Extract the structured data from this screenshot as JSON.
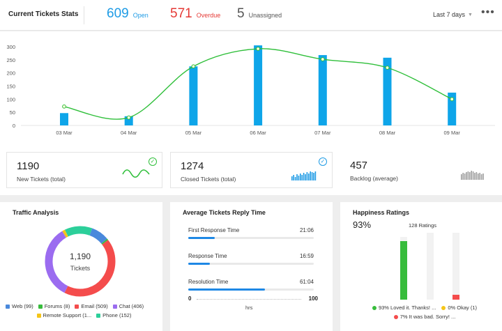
{
  "header": {
    "title": "Current Tickets Stats",
    "open": {
      "value": "609",
      "label": "Open",
      "color": "#1e9be5"
    },
    "overdue": {
      "value": "571",
      "label": "Overdue",
      "color": "#e53935"
    },
    "unassigned": {
      "value": "5",
      "label": "Unassigned",
      "color": "#555555"
    },
    "range_label": "Last 7 days",
    "more_icon": "more-horizontal-icon"
  },
  "chart_data": {
    "type": "bar",
    "categories": [
      "03 Mar",
      "04 Mar",
      "05 Mar",
      "06 Mar",
      "07 Mar",
      "08 Mar",
      "09 Mar"
    ],
    "series": [
      {
        "type": "bar",
        "values": [
          47,
          35,
          225,
          305,
          268,
          258,
          125
        ],
        "color": "#0ea5e9"
      },
      {
        "type": "line",
        "values": [
          72,
          30,
          225,
          292,
          252,
          220,
          100
        ],
        "color": "#2fbf3a"
      }
    ],
    "yticks": [
      "0",
      "50",
      "100",
      "150",
      "200",
      "250",
      "300"
    ],
    "ylim": [
      0,
      300
    ],
    "grid": false
  },
  "summary": [
    {
      "value": "1190",
      "label": "New Tickets (total)",
      "icon": "check-circle-icon",
      "icon_color": "#2fbf3a",
      "spark_color": "#2fbf3a"
    },
    {
      "value": "1274",
      "label": "Closed  Tickets (total)",
      "icon": "check-circle-icon",
      "icon_color": "#1e9be5",
      "spark_color": "#1e9be5"
    },
    {
      "value": "457",
      "label": "Backlog (average)",
      "spark_color": "#9e9e9e"
    }
  ],
  "traffic": {
    "title": "Traffic Analysis",
    "center_value": "1,190",
    "center_label": "Tickets",
    "segments": [
      {
        "label": "Web (99)",
        "value": 99,
        "color": "#4a89dc"
      },
      {
        "label": "Forums (8)",
        "value": 8,
        "color": "#37bc3c"
      },
      {
        "label": "Email (509)",
        "value": 509,
        "color": "#f44c4c"
      },
      {
        "label": "Chat (406)",
        "value": 406,
        "color": "#9b6cf0"
      },
      {
        "label": "Remote Support (1...",
        "value": 16,
        "color": "#f5c518"
      },
      {
        "label": "Phone (152)",
        "value": 152,
        "color": "#2ccf9a"
      }
    ]
  },
  "reply": {
    "title_prefix": "Average",
    "title_bold": "Tickets",
    "title_suffix": "Reply Time",
    "metrics": [
      {
        "label": "First Response Time",
        "value": "21:06",
        "fraction": 0.21
      },
      {
        "label": "Response Time",
        "value": "16:59",
        "fraction": 0.17
      },
      {
        "label": "Resolution Time",
        "value": "61:04",
        "fraction": 0.61
      }
    ],
    "scale_min": "0",
    "scale_max": "100",
    "unit": "hrs"
  },
  "happiness": {
    "title": "Happiness Ratings",
    "percent": "93%",
    "count": "128 Ratings",
    "ratings": [
      {
        "label": "93% Loved it. Thanks! ...",
        "fraction": 0.93,
        "color": "#37bc3c"
      },
      {
        "label": "0% Okay (1)",
        "fraction": 0.0,
        "color": "#f5c518"
      },
      {
        "label": "7% It was bad. Sorry! ...",
        "fraction": 0.07,
        "color": "#f44c4c"
      }
    ]
  }
}
